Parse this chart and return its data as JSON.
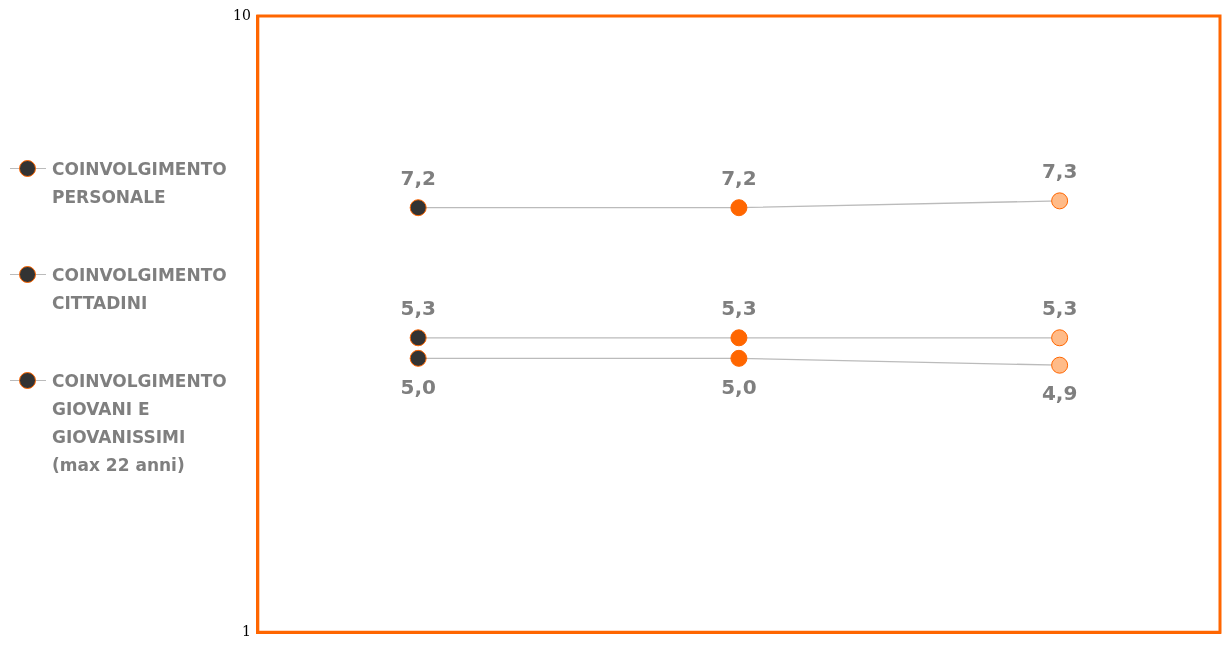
{
  "chart_data": {
    "type": "line",
    "categories": [
      null,
      null,
      null
    ],
    "series": [
      {
        "name": "COINVOLGIMENTO PERSONALE",
        "color": "#bbbbbb",
        "colors": [
          "#333333",
          "#ff6600",
          "#ffbb88"
        ],
        "values": [
          7.2,
          7.2,
          7.3
        ],
        "value_labels": [
          "7,2",
          "7,2",
          "7,3"
        ]
      },
      {
        "name": "COINVOLGIMENTO CITTADINI",
        "color": "#bbbbbb",
        "colors": [
          "#333333",
          "#ff6600",
          "#ffbb88"
        ],
        "values": [
          5.3,
          5.3,
          5.3
        ],
        "value_labels": [
          "5,3",
          "5,3",
          "5,3"
        ]
      },
      {
        "name": "COINVOLGIMENTO GIOVANI E GIOVANISSIMI (max 22 anni)",
        "color": "#bbbbbb",
        "colors": [
          "#333333",
          "#ff6600",
          "#ffbb88"
        ],
        "values": [
          5.0,
          5.0,
          4.9
        ],
        "value_labels": [
          "5,0",
          "5,0",
          "4,9"
        ]
      }
    ],
    "ylim": [
      1,
      10
    ],
    "yticks": [
      1,
      10
    ],
    "grid": false,
    "legend": "left",
    "marker": "circle",
    "line_style": "solid"
  }
}
